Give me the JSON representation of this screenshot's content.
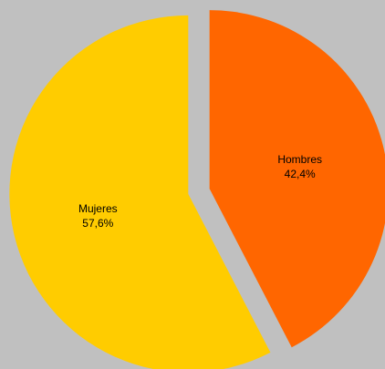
{
  "colors": {
    "background": "#C0C0C0",
    "hombres": "#FF6600",
    "mujeres": "#FFCC00"
  },
  "chart_data": {
    "type": "pie",
    "title": "",
    "legend": "none",
    "slices": [
      {
        "label": "Hombres",
        "value": 42.4,
        "value_label": "42,4%",
        "color": "#FF6600",
        "exploded": true
      },
      {
        "label": "Mujeres",
        "value": 57.6,
        "value_label": "57,6%",
        "color": "#FFCC00",
        "exploded": true
      }
    ]
  }
}
